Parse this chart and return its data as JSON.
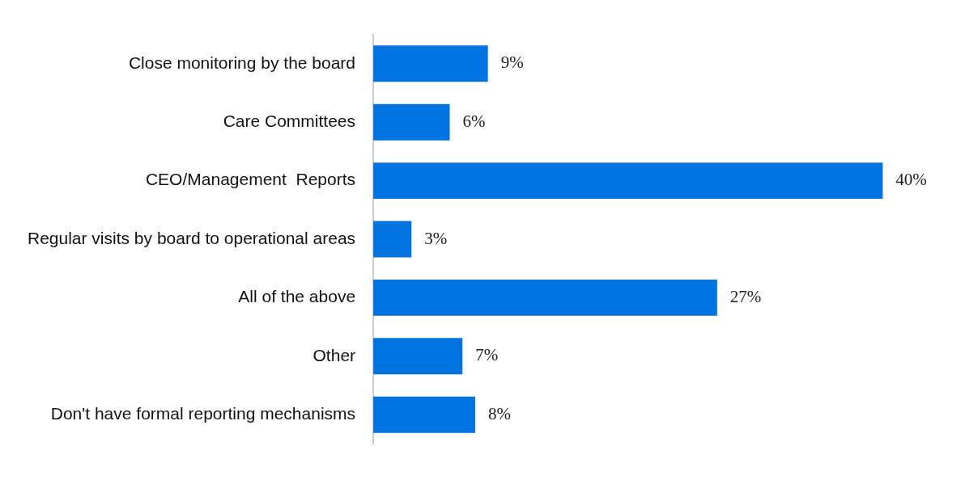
{
  "chart_data": {
    "type": "bar",
    "orientation": "horizontal",
    "categories": [
      "Close monitoring by the board",
      "Care Committees",
      "CEO/Management  Reports",
      "Regular visits by board to operational areas",
      "All of the above",
      "Other",
      "Don't have formal reporting mechanisms"
    ],
    "values": [
      9,
      6,
      40,
      3,
      27,
      7,
      8
    ],
    "value_labels": [
      "9%",
      "6%",
      "40%",
      "3%",
      "27%",
      "7%",
      "8%"
    ],
    "color": "#0073e0"
  }
}
